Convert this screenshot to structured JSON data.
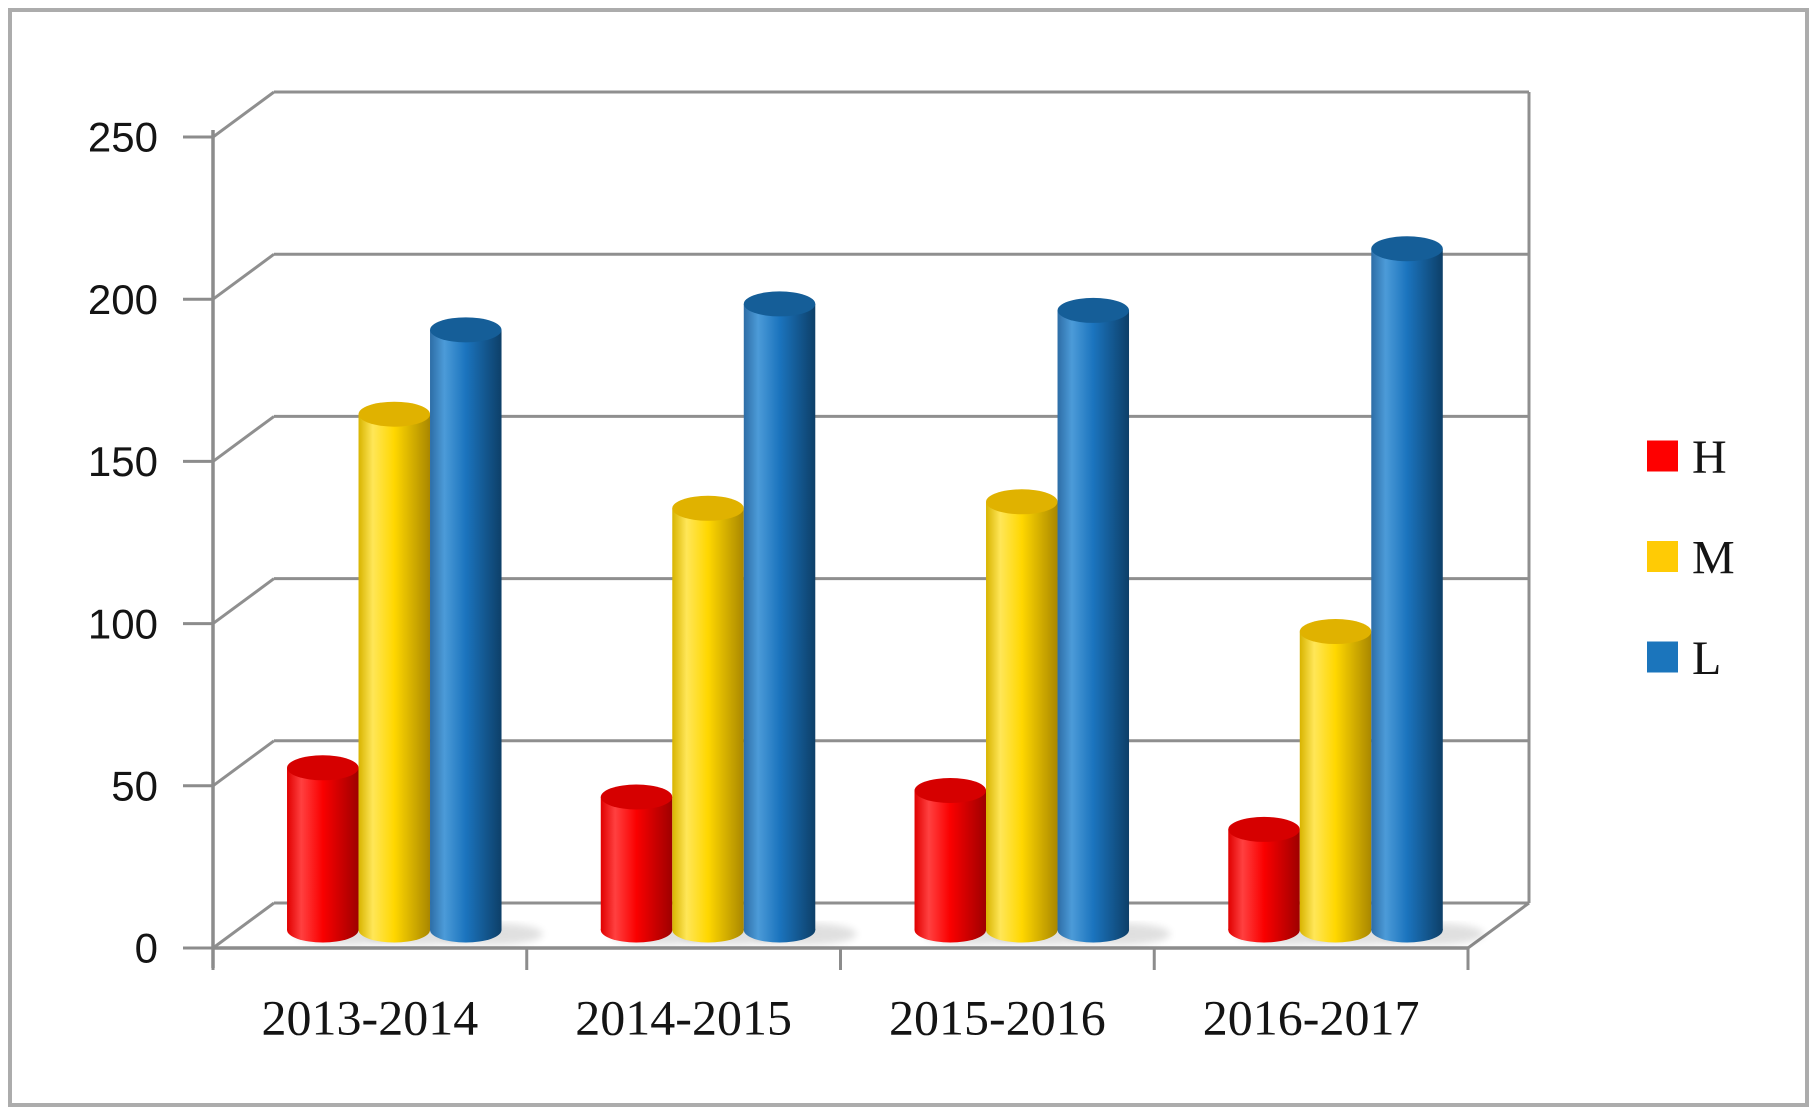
{
  "chart_data": {
    "type": "bar",
    "subtype": "3d-cylinder",
    "title": "",
    "xlabel": "",
    "ylabel": "",
    "categories": [
      "2013-2014",
      "2014-2015",
      "2015-2016",
      "2016-2017"
    ],
    "series": [
      {
        "name": "H",
        "values": [
          50,
          41,
          43,
          31
        ],
        "color": "#FA0000",
        "edge": "#E00000",
        "light": "#FF4040",
        "dark": "#9E0000",
        "top": "#D60000",
        "legend_swatch": "#FE0000"
      },
      {
        "name": "M",
        "values": [
          159,
          130,
          132,
          92
        ],
        "color": "#FFD700",
        "edge": "#D8B400",
        "light": "#FFE658",
        "dark": "#A98700",
        "top": "#E0B200",
        "legend_swatch": "#FFCB05"
      },
      {
        "name": "L",
        "values": [
          185,
          193,
          191,
          210
        ],
        "color": "#1B74BE",
        "edge": "#2D6DA6",
        "light": "#4C9BD8",
        "dark": "#0D3F68",
        "top": "#155E98",
        "legend_swatch": "#1B75BC"
      }
    ],
    "ylim": [
      0,
      250
    ],
    "ytick_step": 50,
    "ytick_labels": [
      "0",
      "50",
      "100",
      "150",
      "200",
      "250"
    ],
    "grid": true,
    "legend_position": "right",
    "legend_entries": [
      "H",
      "M",
      "L"
    ]
  },
  "colors": {
    "background": "#FFFFFF",
    "border": "#ACACAC",
    "gridline": "#8F8F8F",
    "axis": "#8C8C8C",
    "text": "#141414",
    "shadow": "#000000"
  }
}
